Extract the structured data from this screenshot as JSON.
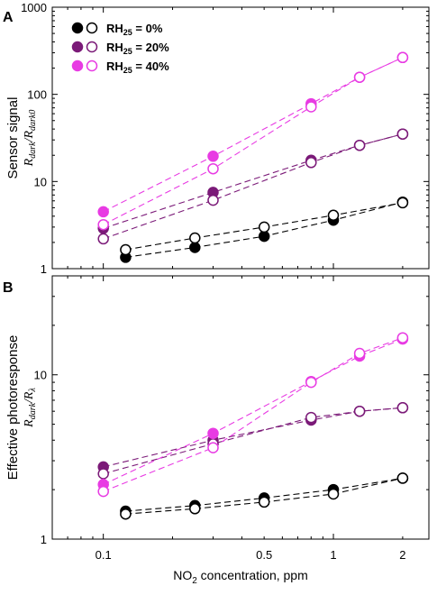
{
  "chart_data": [
    {
      "type": "scatter",
      "panel_label": "A",
      "ylabel_line1": "Sensor signal",
      "ylabel_line2_num": "R",
      "ylabel_line2_num_sub": "dark",
      "ylabel_line2_den": "R",
      "ylabel_line2_den_sub": "dark0",
      "yscale": "log",
      "xscale": "log",
      "xlim": [
        0.06,
        2.6
      ],
      "ylim": [
        1,
        1000
      ],
      "yticks": [
        1,
        10,
        100,
        1000
      ],
      "ytick_labels": [
        "1",
        "10",
        "100",
        "1000"
      ],
      "legend": {
        "placement": "top-left",
        "entries": [
          {
            "prefix": "RH",
            "sub": "25",
            "suffix": " = 0%",
            "color": "#000000"
          },
          {
            "prefix": "RH",
            "sub": "25",
            "suffix": " = 20%",
            "color": "#7b1a78"
          },
          {
            "prefix": "RH",
            "sub": "25",
            "suffix": " = 40%",
            "color": "#e83be3"
          }
        ]
      },
      "series": [
        {
          "group": 0,
          "filled": true,
          "color": "#000000",
          "x": [
            0.125,
            0.25,
            0.5,
            1,
            2
          ],
          "y": [
            1.35,
            1.75,
            2.35,
            3.6,
            5.8
          ]
        },
        {
          "group": 0,
          "filled": false,
          "color": "#000000",
          "x": [
            0.125,
            0.25,
            0.5,
            1,
            2
          ],
          "y": [
            1.65,
            2.25,
            3.0,
            4.1,
            5.7
          ]
        },
        {
          "group": 1,
          "filled": true,
          "color": "#7b1a78",
          "x": [
            0.1,
            0.3,
            0.8,
            1.3,
            2
          ],
          "y": [
            2.9,
            7.5,
            17.5,
            26,
            35
          ]
        },
        {
          "group": 1,
          "filled": false,
          "color": "#7b1a78",
          "x": [
            0.1,
            0.3,
            0.8,
            1.3,
            2
          ],
          "y": [
            2.2,
            6.1,
            16.5,
            26,
            35
          ]
        },
        {
          "group": 2,
          "filled": true,
          "color": "#e83be3",
          "x": [
            0.1,
            0.3,
            0.8,
            1.3,
            2
          ],
          "y": [
            4.5,
            19.5,
            78,
            157,
            265
          ]
        },
        {
          "group": 2,
          "filled": false,
          "color": "#e83be3",
          "x": [
            0.1,
            0.3,
            0.8,
            1.3,
            2
          ],
          "y": [
            3.2,
            14,
            72,
            157,
            265
          ]
        }
      ]
    },
    {
      "type": "scatter",
      "panel_label": "B",
      "ylabel_line1": "Effective photoresponse",
      "ylabel_line2_num": "R",
      "ylabel_line2_num_sub": "dark",
      "ylabel_line2_den": "R",
      "ylabel_line2_den_sub": "λ",
      "yscale": "log",
      "xscale": "log",
      "xlim": [
        0.06,
        2.6
      ],
      "ylim": [
        1,
        40
      ],
      "yticks": [
        1,
        10
      ],
      "ytick_labels": [
        "1",
        "10"
      ],
      "xticks": [
        0.1,
        0.5,
        1,
        2
      ],
      "xtick_labels": [
        "0.1",
        "0.5",
        "1",
        "2"
      ],
      "xlabel_prefix": "NO",
      "xlabel_sub": "2",
      "xlabel_suffix": " concentration, ppm",
      "series": [
        {
          "group": 0,
          "filled": true,
          "color": "#000000",
          "x": [
            0.125,
            0.25,
            0.5,
            1,
            2
          ],
          "y": [
            1.48,
            1.6,
            1.78,
            2.0,
            2.35
          ]
        },
        {
          "group": 0,
          "filled": false,
          "color": "#000000",
          "x": [
            0.125,
            0.25,
            0.5,
            1,
            2
          ],
          "y": [
            1.42,
            1.53,
            1.68,
            1.88,
            2.35
          ]
        },
        {
          "group": 1,
          "filled": true,
          "color": "#7b1a78",
          "x": [
            0.1,
            0.3,
            0.8,
            1.3,
            2
          ],
          "y": [
            2.75,
            4.0,
            5.3,
            6.0,
            6.3
          ]
        },
        {
          "group": 1,
          "filled": false,
          "color": "#7b1a78",
          "x": [
            0.1,
            0.3,
            0.8,
            1.3,
            2
          ],
          "y": [
            2.5,
            3.8,
            5.5,
            6.0,
            6.3
          ]
        },
        {
          "group": 2,
          "filled": true,
          "color": "#e83be3",
          "x": [
            0.1,
            0.3,
            0.8,
            1.3,
            2
          ],
          "y": [
            2.15,
            4.4,
            9.1,
            13.0,
            16.5
          ]
        },
        {
          "group": 2,
          "filled": false,
          "color": "#e83be3",
          "x": [
            0.1,
            0.3,
            0.8,
            1.3,
            2
          ],
          "y": [
            1.95,
            3.6,
            9.0,
            13.5,
            16.8
          ]
        }
      ]
    }
  ]
}
